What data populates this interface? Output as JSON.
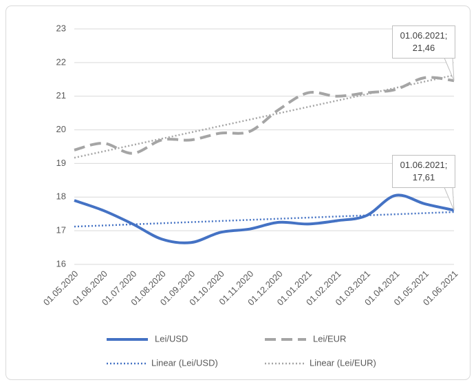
{
  "chart_data": {
    "type": "line",
    "categories": [
      "01.05.2020",
      "01.06.2020",
      "01.07.2020",
      "01.08.2020",
      "01.09.2020",
      "01.10.2020",
      "01.11.2020",
      "01.12.2020",
      "01.01.2021",
      "01.02.2021",
      "01.03.2021",
      "01.04.2021",
      "01.05.2021",
      "01.06.2021"
    ],
    "series": [
      {
        "name": "Lei/USD",
        "color": "#4472c4",
        "dash": "solid",
        "values": [
          17.9,
          17.6,
          17.2,
          16.75,
          16.65,
          16.95,
          17.05,
          17.25,
          17.2,
          17.3,
          17.45,
          18.05,
          17.8,
          17.61
        ],
        "value_labels": [
          null,
          null,
          null,
          null,
          null,
          null,
          null,
          null,
          null,
          null,
          null,
          null,
          null,
          "01.06.2021; 17,61"
        ],
        "trendline": {
          "name": "Linear (Lei/USD)",
          "color": "#4472c4"
        }
      },
      {
        "name": "Lei/EUR",
        "color": "#a5a5a5",
        "dash": "dashed",
        "values": [
          19.4,
          19.6,
          19.3,
          19.7,
          19.7,
          19.9,
          19.95,
          20.6,
          21.1,
          21.0,
          21.1,
          21.2,
          21.55,
          21.46
        ],
        "value_labels": [
          null,
          null,
          null,
          null,
          null,
          null,
          null,
          null,
          null,
          null,
          null,
          null,
          null,
          "01.06.2021; 21,46"
        ],
        "trendline": {
          "name": "Linear (Lei/EUR)",
          "color": "#a5a5a5"
        }
      }
    ],
    "ylim": [
      16,
      23
    ],
    "yticks": [
      16,
      17,
      18,
      19,
      20,
      21,
      22,
      23
    ],
    "grid": true,
    "legend": "bottom"
  }
}
